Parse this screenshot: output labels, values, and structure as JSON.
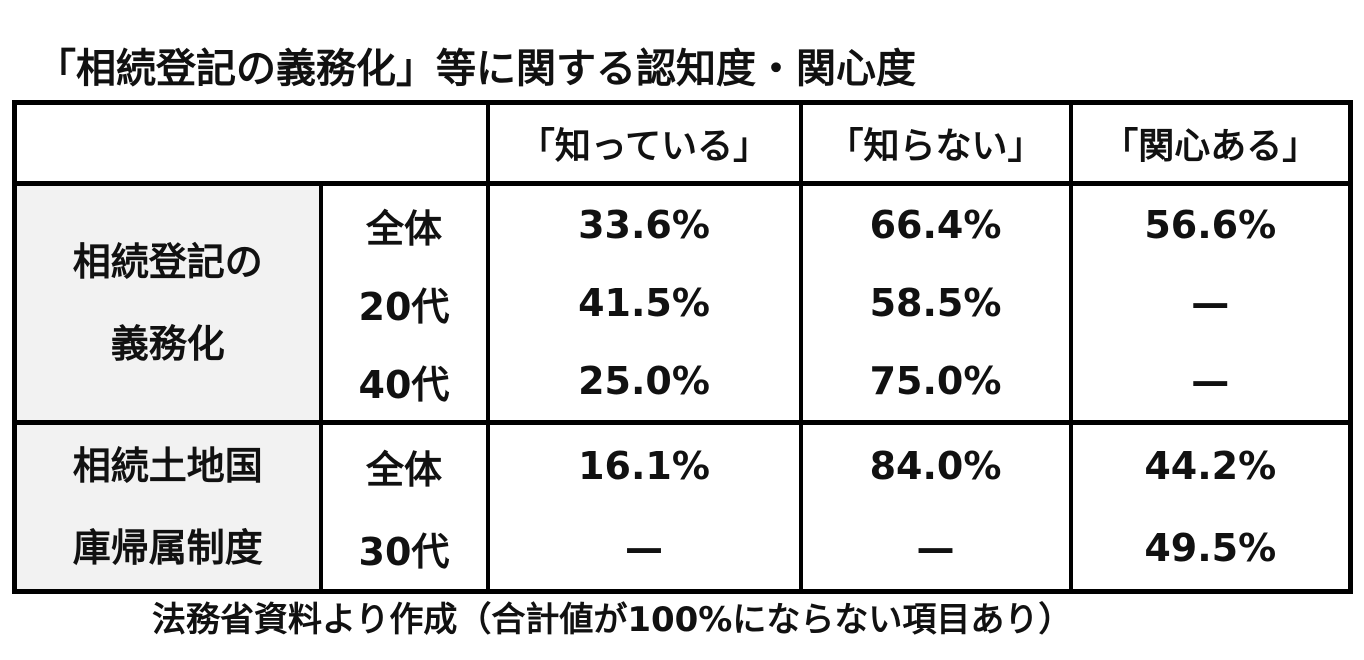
{
  "title": "「相続登記の義務化」等に関する認知度・関心度",
  "table": {
    "header": [
      "「知っている」",
      "「知らない」",
      "「関心ある」"
    ],
    "groups": [
      {
        "label": [
          "相続登記の",
          "義務化"
        ],
        "rows": [
          {
            "label": "全体",
            "cells": [
              "33.6%",
              "66.4%",
              "56.6%"
            ]
          },
          {
            "label": "20代",
            "cells": [
              "41.5%",
              "58.5%",
              "—"
            ]
          },
          {
            "label": "40代",
            "cells": [
              "25.0%",
              "75.0%",
              "—"
            ]
          }
        ]
      },
      {
        "label": [
          "相続土地国",
          "庫帰属制度"
        ],
        "rows": [
          {
            "label": "全体",
            "cells": [
              "16.1%",
              "84.0%",
              "44.2%"
            ]
          },
          {
            "label": "30代",
            "cells": [
              "—",
              "—",
              "49.5%"
            ]
          }
        ]
      }
    ]
  },
  "note": "法務省資料より作成（合計値が100%にならない項目あり）"
}
